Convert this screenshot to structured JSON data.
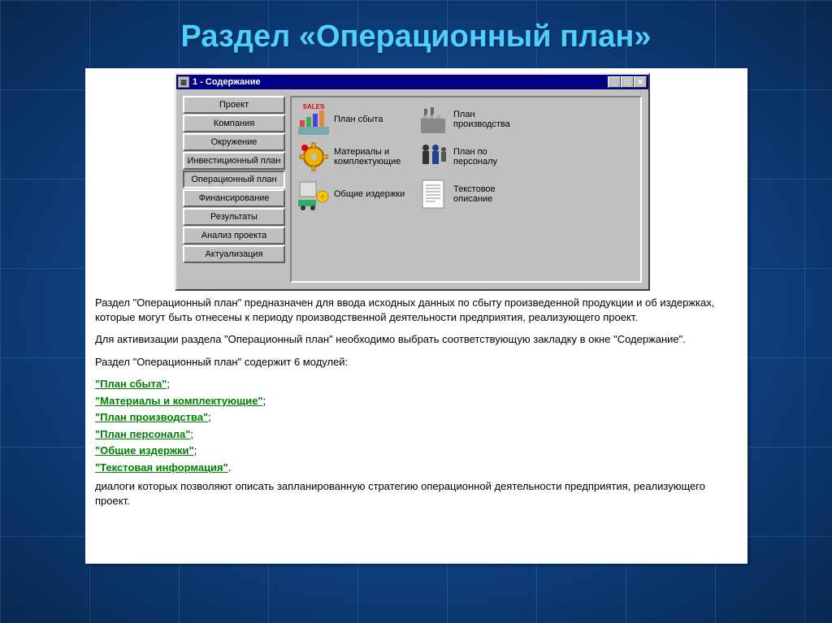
{
  "slide": {
    "title": "Раздел «Операционный план»"
  },
  "window": {
    "title": "1 - Содержание",
    "sidebar": {
      "items": [
        {
          "label": "Проект",
          "active": false
        },
        {
          "label": "Компания",
          "active": false
        },
        {
          "label": "Окружение",
          "active": false
        },
        {
          "label": "Инвестиционный план",
          "active": false
        },
        {
          "label": "Операционный план",
          "active": true
        },
        {
          "label": "Финансирование",
          "active": false
        },
        {
          "label": "Результаты",
          "active": false
        },
        {
          "label": "Анализ проекта",
          "active": false
        },
        {
          "label": "Актуализация",
          "active": false
        }
      ]
    },
    "modules": [
      {
        "label": "План сбыта",
        "icon": "sales"
      },
      {
        "label": "План производства",
        "icon": "factory"
      },
      {
        "label": "Материалы   и комплектующие",
        "icon": "gear"
      },
      {
        "label": "План  по персоналу",
        "icon": "people"
      },
      {
        "label": "Общие издержки",
        "icon": "truck"
      },
      {
        "label": "Текстовое описание",
        "icon": "doc"
      }
    ]
  },
  "body": {
    "para1": "Раздел \"Операционный план\"  предназначен для ввода исходных данных по сбыту произведенной продукции и об издержках, которые могут быть отнесены к периоду  производственной деятельности предприятия, реализующего проект.",
    "para2": "Для активизации раздела \"Операционный план\" необходимо выбрать соответствующую закладку в окне \"Содержание\".",
    "para3": "Раздел \"Операционный план\" содержит 6 модулей:",
    "links": [
      "\"План сбыта\"",
      "\"Материалы и комплектующие\"",
      "\"План производства\"",
      "\"План персонала\"",
      "\"Общие издержки\"",
      "\"Текстовая информация\""
    ],
    "para4": "диалоги которых позволяют описать запланированную стратегию операционной деятельности предприятия, реализующего проект."
  },
  "colors": {
    "title": "#4dd0ff",
    "link": "#008000",
    "win_titlebar": "#000080",
    "win_face": "#c0c0c0"
  }
}
